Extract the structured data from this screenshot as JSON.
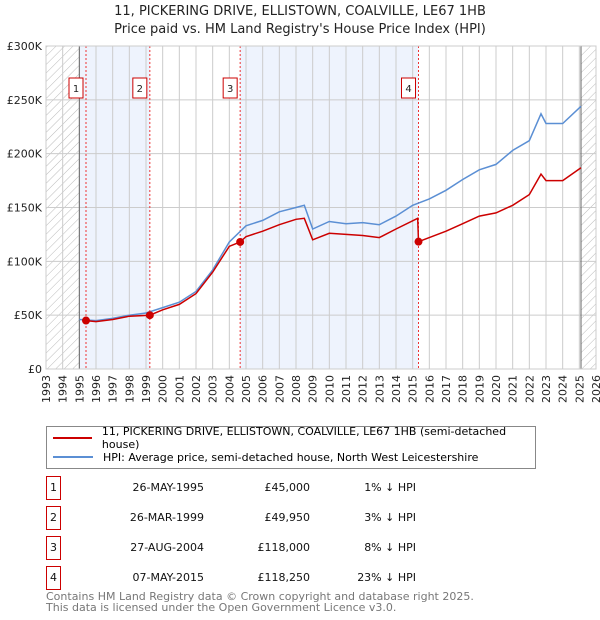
{
  "title_line1": "11, PICKERING DRIVE, ELLISTOWN, COALVILLE, LE67 1HB",
  "title_line2": "Price paid vs. HM Land Registry's House Price Index (HPI)",
  "legend": {
    "property": "11, PICKERING DRIVE, ELLISTOWN, COALVILLE, LE67 1HB (semi-detached house)",
    "hpi": "HPI: Average price, semi-detached house, North West Leicestershire"
  },
  "sales": [
    {
      "num": "1",
      "date": "26-MAY-1995",
      "price": "£45,000",
      "diff": "1% ↓ HPI"
    },
    {
      "num": "2",
      "date": "26-MAR-1999",
      "price": "£49,950",
      "diff": "3% ↓ HPI"
    },
    {
      "num": "3",
      "date": "27-AUG-2004",
      "price": "£118,000",
      "diff": "8% ↓ HPI"
    },
    {
      "num": "4",
      "date": "07-MAY-2015",
      "price": "£118,250",
      "diff": "23% ↓ HPI"
    }
  ],
  "footer": {
    "line1": "Contains HM Land Registry data © Crown copyright and database right 2025.",
    "line2": "This data is licensed under the Open Government Licence v3.0."
  },
  "chart_data": {
    "type": "line",
    "xlim": [
      1993,
      2026
    ],
    "ylim": [
      0,
      300000
    ],
    "yticks": [
      0,
      50000,
      100000,
      150000,
      200000,
      250000,
      300000
    ],
    "ytick_labels": [
      "£0",
      "£50K",
      "£100K",
      "£150K",
      "£200K",
      "£250K",
      "£300K"
    ],
    "xticks": [
      1993,
      1994,
      1995,
      1996,
      1997,
      1998,
      1999,
      2000,
      2001,
      2002,
      2003,
      2004,
      2005,
      2006,
      2007,
      2008,
      2009,
      2010,
      2011,
      2012,
      2013,
      2014,
      2015,
      2016,
      2017,
      2018,
      2019,
      2020,
      2021,
      2022,
      2023,
      2024,
      2025,
      2026
    ],
    "grid": true,
    "hatched_before": 1995.0,
    "hatched_after": 2025.1,
    "shaded_bands": [
      [
        1995.0,
        1999.23
      ],
      [
        2004.65,
        2015.35
      ]
    ],
    "colors": {
      "property": "#cc0000",
      "hpi": "#5b8fd4"
    },
    "series": [
      {
        "name": "property",
        "x": [
          1995.4,
          1996,
          1997,
          1998,
          1999.23,
          2000,
          2001,
          2002,
          2003,
          2004,
          2004.65,
          2005,
          2006,
          2007,
          2008,
          2008.5,
          2009,
          2010,
          2011,
          2012,
          2013,
          2014,
          2015.3,
          2015.35,
          2016,
          2017,
          2018,
          2019,
          2020,
          2021,
          2022,
          2022.7,
          2023,
          2024,
          2025.1
        ],
        "y": [
          45000,
          44000,
          46000,
          49000,
          49950,
          55000,
          60000,
          70000,
          90000,
          114000,
          118000,
          123000,
          128000,
          134000,
          139000,
          140000,
          120000,
          126000,
          125000,
          124000,
          122000,
          130000,
          140000,
          118250,
          122000,
          128000,
          135000,
          142000,
          145000,
          152000,
          162000,
          181000,
          175000,
          175000,
          187000
        ]
      },
      {
        "name": "hpi",
        "x": [
          1995.0,
          1996,
          1997,
          1998,
          1999,
          2000,
          2001,
          2002,
          2003,
          2004,
          2005,
          2006,
          2007,
          2008,
          2008.5,
          2009,
          2010,
          2011,
          2012,
          2013,
          2014,
          2015,
          2016,
          2017,
          2018,
          2019,
          2020,
          2021,
          2022,
          2022.7,
          2023,
          2024,
          2025.1
        ],
        "y": [
          46000,
          45000,
          47000,
          50000,
          52000,
          57000,
          62000,
          72000,
          92000,
          118000,
          133000,
          138000,
          146000,
          150000,
          152000,
          130000,
          137000,
          135000,
          136000,
          134000,
          142000,
          152000,
          158000,
          166000,
          176000,
          185000,
          190000,
          203000,
          212000,
          237000,
          228000,
          228000,
          244000
        ]
      }
    ],
    "sale_points": [
      [
        1995.4,
        45000
      ],
      [
        1999.23,
        49950
      ],
      [
        2004.65,
        118000
      ],
      [
        2015.35,
        118250
      ]
    ]
  }
}
